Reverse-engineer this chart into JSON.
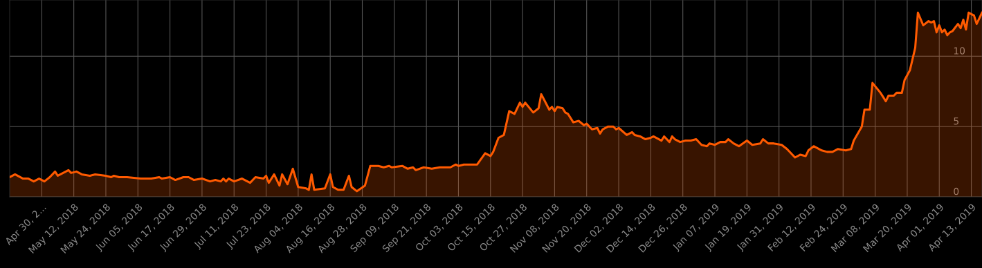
{
  "chart_data": {
    "type": "area",
    "x": [
      "2018-04-18",
      "2018-04-20",
      "2018-04-23",
      "2018-04-25",
      "2018-04-27",
      "2018-04-29",
      "2018-05-01",
      "2018-05-03",
      "2018-05-05",
      "2018-05-06",
      "2018-05-08",
      "2018-05-10",
      "2018-05-11",
      "2018-05-13",
      "2018-05-15",
      "2018-05-18",
      "2018-05-20",
      "2018-05-24",
      "2018-05-26",
      "2018-05-27",
      "2018-05-29",
      "2018-06-01",
      "2018-06-06",
      "2018-06-10",
      "2018-06-13",
      "2018-06-14",
      "2018-06-17",
      "2018-06-19",
      "2018-06-22",
      "2018-06-24",
      "2018-06-26",
      "2018-06-29",
      "2018-07-02",
      "2018-07-04",
      "2018-07-06",
      "2018-07-07",
      "2018-07-08",
      "2018-07-09",
      "2018-07-11",
      "2018-07-14",
      "2018-07-17",
      "2018-07-19",
      "2018-07-22",
      "2018-07-23",
      "2018-07-24",
      "2018-07-26",
      "2018-07-28",
      "2018-07-29",
      "2018-07-31",
      "2018-08-02",
      "2018-08-04",
      "2018-08-07",
      "2018-08-08",
      "2018-08-09",
      "2018-08-10",
      "2018-08-14",
      "2018-08-16",
      "2018-08-17",
      "2018-08-19",
      "2018-08-21",
      "2018-08-23",
      "2018-08-24",
      "2018-08-26",
      "2018-08-29",
      "2018-08-31",
      "2018-09-03",
      "2018-09-05",
      "2018-09-07",
      "2018-09-08",
      "2018-09-12",
      "2018-09-14",
      "2018-09-16",
      "2018-09-17",
      "2018-09-20",
      "2018-09-23",
      "2018-09-26",
      "2018-09-30",
      "2018-10-02",
      "2018-10-03",
      "2018-10-05",
      "2018-10-10",
      "2018-10-13",
      "2018-10-15",
      "2018-10-16",
      "2018-10-18",
      "2018-10-20",
      "2018-10-22",
      "2018-10-24",
      "2018-10-26",
      "2018-10-27",
      "2018-10-28",
      "2018-10-31",
      "2018-11-02",
      "2018-11-03",
      "2018-11-06",
      "2018-11-07",
      "2018-11-08",
      "2018-11-09",
      "2018-11-11",
      "2018-11-12",
      "2018-11-13",
      "2018-11-15",
      "2018-11-17",
      "2018-11-19",
      "2018-11-20",
      "2018-11-22",
      "2018-11-24",
      "2018-11-25",
      "2018-11-26",
      "2018-11-28",
      "2018-11-29",
      "2018-11-30",
      "2018-12-01",
      "2018-12-02",
      "2018-12-05",
      "2018-12-07",
      "2018-12-08",
      "2018-12-10",
      "2018-12-12",
      "2018-12-14",
      "2018-12-15",
      "2018-12-18",
      "2018-12-19",
      "2018-12-21",
      "2018-12-22",
      "2018-12-23",
      "2018-12-25",
      "2018-12-27",
      "2018-12-29",
      "2018-12-31",
      "2019-01-02",
      "2019-01-04",
      "2019-01-05",
      "2019-01-07",
      "2019-01-09",
      "2019-01-11",
      "2019-01-12",
      "2019-01-14",
      "2019-01-16",
      "2019-01-19",
      "2019-01-21",
      "2019-01-24",
      "2019-01-25",
      "2019-01-27",
      "2019-01-29",
      "2019-02-01",
      "2019-02-03",
      "2019-02-06",
      "2019-02-08",
      "2019-02-10",
      "2019-02-11",
      "2019-02-13",
      "2019-02-16",
      "2019-02-18",
      "2019-02-20",
      "2019-02-22",
      "2019-02-25",
      "2019-02-27",
      "2019-02-28",
      "2019-03-03",
      "2019-03-04",
      "2019-03-06",
      "2019-03-07",
      "2019-03-10",
      "2019-03-12",
      "2019-03-13",
      "2019-03-15",
      "2019-03-16",
      "2019-03-18",
      "2019-03-19",
      "2019-03-21",
      "2019-03-23",
      "2019-03-24",
      "2019-03-26",
      "2019-03-28",
      "2019-03-29",
      "2019-03-30",
      "2019-03-31",
      "2019-04-01",
      "2019-04-02",
      "2019-04-03",
      "2019-04-04",
      "2019-04-05",
      "2019-04-06",
      "2019-04-08",
      "2019-04-09",
      "2019-04-10",
      "2019-04-11",
      "2019-04-12",
      "2019-04-14",
      "2019-04-15",
      "2019-04-17"
    ],
    "series": [
      {
        "color": "#ff5a00",
        "values": [
          1.4,
          1.6,
          1.3,
          1.3,
          1.1,
          1.3,
          1.1,
          1.4,
          1.8,
          1.5,
          1.7,
          1.9,
          1.7,
          1.8,
          1.6,
          1.5,
          1.6,
          1.5,
          1.4,
          1.5,
          1.4,
          1.4,
          1.3,
          1.3,
          1.4,
          1.3,
          1.4,
          1.2,
          1.4,
          1.4,
          1.2,
          1.3,
          1.1,
          1.2,
          1.1,
          1.3,
          1.1,
          1.3,
          1.1,
          1.3,
          1.0,
          1.4,
          1.3,
          1.5,
          1.0,
          1.6,
          0.8,
          1.6,
          0.9,
          2.0,
          0.7,
          0.6,
          0.5,
          1.6,
          0.5,
          0.6,
          1.6,
          0.7,
          0.5,
          0.5,
          1.5,
          0.7,
          0.4,
          0.8,
          2.2,
          2.2,
          2.1,
          2.2,
          2.1,
          2.2,
          2.0,
          2.1,
          1.9,
          2.1,
          2.0,
          2.1,
          2.1,
          2.3,
          2.2,
          2.3,
          2.3,
          3.1,
          2.9,
          3.2,
          4.2,
          4.4,
          6.1,
          5.9,
          6.7,
          6.4,
          6.7,
          6.0,
          6.3,
          7.3,
          6.2,
          6.4,
          6.1,
          6.4,
          6.3,
          6.0,
          5.9,
          5.3,
          5.4,
          5.1,
          5.2,
          4.8,
          4.9,
          4.5,
          4.8,
          5.0,
          5.0,
          5.0,
          4.8,
          4.9,
          4.4,
          4.6,
          4.4,
          4.3,
          4.1,
          4.2,
          4.3,
          4.0,
          4.3,
          3.9,
          4.3,
          4.1,
          3.9,
          4.0,
          4.0,
          4.1,
          3.7,
          3.6,
          3.8,
          3.7,
          3.9,
          3.9,
          4.1,
          3.8,
          3.6,
          4.0,
          3.7,
          3.8,
          4.1,
          3.8,
          3.8,
          3.7,
          3.4,
          2.8,
          3.0,
          2.9,
          3.3,
          3.6,
          3.3,
          3.2,
          3.2,
          3.4,
          3.3,
          3.4,
          4.0,
          5.0,
          6.2,
          6.2,
          8.1,
          7.4,
          6.8,
          7.2,
          7.2,
          7.4,
          7.4,
          8.3,
          9.0,
          10.6,
          13.1,
          12.2,
          12.5,
          12.4,
          12.5,
          11.7,
          12.2,
          11.7,
          11.9,
          11.5,
          11.7,
          11.8,
          12.3,
          12.0,
          12.6,
          11.9,
          13.1,
          12.9,
          12.3,
          13.1
        ]
      }
    ],
    "xlim": [
      "2018-04-18",
      "2019-04-17"
    ],
    "xticks": [
      {
        "value": "2018-04-30",
        "label": "Apr 30, 2..."
      },
      {
        "value": "2018-05-12",
        "label": "May 12, 2018"
      },
      {
        "value": "2018-05-24",
        "label": "May 24, 2018"
      },
      {
        "value": "2018-06-05",
        "label": "Jun 05, 2018"
      },
      {
        "value": "2018-06-17",
        "label": "Jun 17, 2018"
      },
      {
        "value": "2018-06-29",
        "label": "Jun 29, 2018"
      },
      {
        "value": "2018-07-11",
        "label": "Jul 11, 2018"
      },
      {
        "value": "2018-07-23",
        "label": "Jul 23, 2018"
      },
      {
        "value": "2018-08-04",
        "label": "Aug 04, 2018"
      },
      {
        "value": "2018-08-16",
        "label": "Aug 16, 2018"
      },
      {
        "value": "2018-08-28",
        "label": "Aug 28, 2018"
      },
      {
        "value": "2018-09-09",
        "label": "Sep 09, 2018"
      },
      {
        "value": "2018-09-21",
        "label": "Sep 21, 2018"
      },
      {
        "value": "2018-10-03",
        "label": "Oct 03, 2018"
      },
      {
        "value": "2018-10-15",
        "label": "Oct 15, 2018"
      },
      {
        "value": "2018-10-27",
        "label": "Oct 27, 2018"
      },
      {
        "value": "2018-11-08",
        "label": "Nov 08, 2018"
      },
      {
        "value": "2018-11-20",
        "label": "Nov 20, 2018"
      },
      {
        "value": "2018-12-02",
        "label": "Dec 02, 2018"
      },
      {
        "value": "2018-12-14",
        "label": "Dec 14, 2018"
      },
      {
        "value": "2018-12-26",
        "label": "Dec 26, 2018"
      },
      {
        "value": "2019-01-07",
        "label": "Jan 07, 2019"
      },
      {
        "value": "2019-01-19",
        "label": "Jan 19, 2019"
      },
      {
        "value": "2019-01-31",
        "label": "Jan 31, 2019"
      },
      {
        "value": "2019-02-12",
        "label": "Feb 12, 2019"
      },
      {
        "value": "2019-02-24",
        "label": "Feb 24, 2019"
      },
      {
        "value": "2019-03-08",
        "label": "Mar 08, 2019"
      },
      {
        "value": "2019-03-20",
        "label": "Mar 20, 2019"
      },
      {
        "value": "2019-04-01",
        "label": "Apr 01, 2019"
      },
      {
        "value": "2019-04-13",
        "label": "Apr 13, 2019"
      }
    ],
    "ylim": [
      0,
      14
    ],
    "yticks": [
      0,
      5,
      10
    ],
    "grid": true,
    "marker": "none",
    "line_style": "solid"
  }
}
